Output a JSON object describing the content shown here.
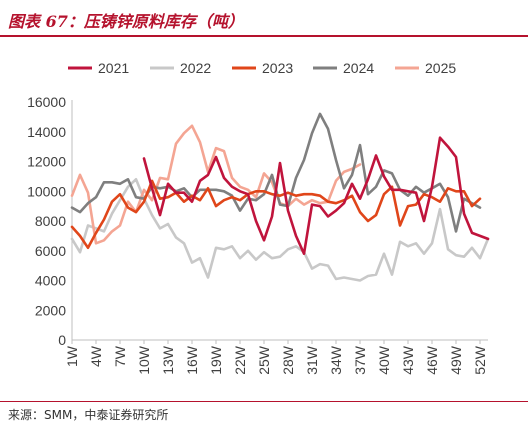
{
  "header": {
    "title": "图表 67：压铸锌原料库存（吨）"
  },
  "footer": {
    "source": "来源：SMM，中泰证券研究所"
  },
  "colors": {
    "2021": "#c0143c",
    "2022": "#c8c8c8",
    "2023": "#e0461a",
    "2024": "#7f7f7f",
    "2025": "#f4a593"
  },
  "chart_data": {
    "type": "line",
    "title": "压铸锌原料库存（吨）",
    "xlabel": "",
    "ylabel": "",
    "ylim": [
      0,
      16000
    ],
    "yticks": [
      0,
      2000,
      4000,
      6000,
      8000,
      10000,
      12000,
      14000,
      16000
    ],
    "x_range": [
      1,
      53
    ],
    "x_tick_labels": [
      "1W",
      "4W",
      "7W",
      "10W",
      "13W",
      "16W",
      "19W",
      "22W",
      "25W",
      "28W",
      "31W",
      "34W",
      "37W",
      "40W",
      "43W",
      "46W",
      "49W",
      "52W"
    ],
    "grid": false,
    "legend_position": "top",
    "series": [
      {
        "name": "2021",
        "x": [
          10,
          11,
          12,
          13,
          14,
          15,
          16,
          17,
          18,
          19,
          20,
          21,
          22,
          23,
          24,
          25,
          26,
          27,
          28,
          29,
          30,
          31,
          32,
          33,
          34,
          35,
          36,
          37,
          38,
          39,
          40,
          41,
          42,
          43,
          44,
          45,
          46,
          47,
          48,
          49,
          50,
          51,
          52,
          53
        ],
        "values": [
          12200,
          10200,
          8400,
          10500,
          9900,
          9900,
          9300,
          10700,
          11100,
          12300,
          10900,
          10300,
          10000,
          9800,
          8000,
          6700,
          8300,
          11900,
          8700,
          7000,
          5800,
          9100,
          9000,
          8300,
          8700,
          9200,
          10500,
          9500,
          10800,
          12400,
          11000,
          10100,
          10100,
          10000,
          9900,
          8000,
          10300,
          13600,
          13000,
          12300,
          8500,
          7200,
          7000,
          6800
        ]
      },
      {
        "name": "2022",
        "x": [
          1,
          2,
          3,
          4,
          5,
          6,
          7,
          8,
          9,
          10,
          11,
          12,
          13,
          14,
          15,
          16,
          17,
          18,
          19,
          20,
          21,
          22,
          23,
          24,
          25,
          26,
          27,
          28,
          29,
          30,
          31,
          32,
          33,
          34,
          35,
          36,
          37,
          38,
          39,
          40,
          41,
          42,
          43,
          44,
          45,
          46,
          47,
          48,
          49,
          50,
          51,
          52,
          53
        ],
        "values": [
          6800,
          5900,
          7700,
          7500,
          7300,
          8500,
          9400,
          10300,
          10800,
          9500,
          8400,
          7500,
          7800,
          6900,
          6500,
          5200,
          5500,
          4200,
          6200,
          6100,
          6300,
          5500,
          6000,
          5400,
          5900,
          5500,
          5600,
          6100,
          6300,
          5900,
          4800,
          5100,
          5000,
          4100,
          4200,
          4100,
          4000,
          4300,
          4400,
          5800,
          4400,
          6600,
          6300,
          6500,
          5800,
          6500,
          8800,
          6100,
          5700,
          5600,
          6200,
          5500,
          6800
        ]
      },
      {
        "name": "2023",
        "x": [
          1,
          2,
          3,
          4,
          5,
          6,
          7,
          8,
          9,
          10,
          11,
          12,
          13,
          14,
          15,
          16,
          17,
          18,
          19,
          20,
          21,
          22,
          23,
          24,
          25,
          26,
          27,
          28,
          29,
          30,
          31,
          32,
          33,
          34,
          35,
          36,
          37,
          38,
          39,
          40,
          41,
          42,
          43,
          44,
          45,
          46,
          47,
          48,
          49,
          50,
          51,
          52
        ],
        "values": [
          7600,
          7000,
          6200,
          7200,
          8100,
          9300,
          9800,
          8900,
          8600,
          9300,
          10700,
          9500,
          9600,
          9900,
          9300,
          9700,
          9400,
          10200,
          9000,
          9400,
          9600,
          9400,
          9800,
          10000,
          10000,
          9800,
          9700,
          9900,
          9700,
          9800,
          9800,
          9700,
          9300,
          9200,
          9400,
          9700,
          8600,
          8000,
          8400,
          9800,
          10300,
          7700,
          9000,
          9100,
          9800,
          9600,
          9300,
          10200,
          10000,
          10000,
          9000,
          9500
        ]
      },
      {
        "name": "2024",
        "x": [
          1,
          2,
          3,
          4,
          5,
          6,
          7,
          8,
          9,
          10,
          11,
          12,
          13,
          14,
          15,
          16,
          17,
          18,
          19,
          20,
          21,
          22,
          23,
          24,
          25,
          26,
          27,
          28,
          29,
          30,
          31,
          32,
          33,
          34,
          35,
          36,
          37,
          38,
          39,
          40,
          41,
          42,
          43,
          44,
          45,
          46,
          47,
          48,
          49,
          50,
          51,
          52
        ],
        "values": [
          8900,
          8600,
          9200,
          9600,
          10600,
          10600,
          10500,
          10800,
          9600,
          9500,
          10300,
          10200,
          10300,
          10000,
          10200,
          9600,
          10100,
          10100,
          10100,
          10000,
          9700,
          8700,
          9500,
          9400,
          9800,
          11100,
          9100,
          9000,
          10900,
          12100,
          13900,
          15200,
          14200,
          12100,
          10200,
          11100,
          13100,
          9800,
          10300,
          11400,
          11200,
          10100,
          9700,
          10300,
          9900,
          10200,
          10500,
          9600,
          7300,
          9500,
          9200,
          8900
        ]
      },
      {
        "name": "2025",
        "x": [
          1,
          2,
          3,
          4,
          5,
          6,
          7,
          8,
          9,
          10,
          11,
          12,
          13,
          14,
          15,
          16,
          17,
          18,
          19,
          20,
          21,
          22,
          23,
          24,
          25,
          26,
          27,
          28,
          29,
          30,
          31,
          32,
          33,
          34,
          35,
          36,
          37
        ],
        "values": [
          9700,
          11100,
          9900,
          6500,
          6700,
          7300,
          7700,
          9300,
          8600,
          10100,
          9400,
          10900,
          10800,
          13200,
          13900,
          14400,
          13300,
          11300,
          12900,
          12700,
          10900,
          10300,
          10100,
          9600,
          11200,
          10600,
          9200,
          9000,
          9500,
          9100,
          9400,
          9200,
          9300,
          10700,
          11300,
          11500,
          11800
        ]
      }
    ]
  }
}
